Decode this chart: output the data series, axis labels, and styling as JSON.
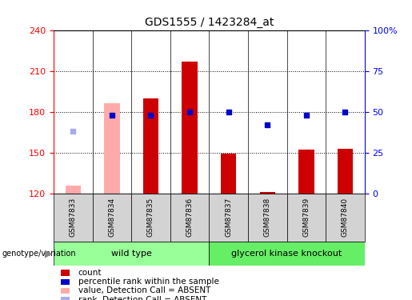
{
  "title": "GDS1555 / 1423284_at",
  "samples": [
    "GSM87833",
    "GSM87834",
    "GSM87835",
    "GSM87836",
    "GSM87837",
    "GSM87838",
    "GSM87839",
    "GSM87840"
  ],
  "ylim_left": [
    120,
    240
  ],
  "ylim_right": [
    0,
    100
  ],
  "yticks_left": [
    120,
    150,
    180,
    210,
    240
  ],
  "yticks_right": [
    0,
    25,
    50,
    75,
    100
  ],
  "yticklabels_right": [
    "0",
    "25",
    "50",
    "75",
    "100%"
  ],
  "bar_bottom": 120,
  "count_values": [
    null,
    null,
    190,
    217,
    149,
    121,
    152,
    153
  ],
  "count_color": "#cc0000",
  "absent_bar_values": [
    126,
    186,
    null,
    null,
    null,
    null,
    null,
    null
  ],
  "absent_bar_color": "#ffaaaa",
  "percentile_values_right": [
    null,
    48,
    48,
    50,
    50,
    42,
    48,
    50
  ],
  "percentile_color": "#0000cc",
  "absent_rank_value_right": [
    38,
    null,
    null,
    null,
    null,
    null,
    null,
    null
  ],
  "absent_rank_color": "#aaaaee",
  "wild_type_indices": [
    0,
    1,
    2,
    3
  ],
  "knockout_indices": [
    4,
    5,
    6,
    7
  ],
  "group_color_wt": "#99ff99",
  "group_color_ko": "#66ee66",
  "group_label_wt": "wild type",
  "group_label_ko": "glycerol kinase knockout",
  "xlabel_label": "genotype/variation",
  "legend_items": [
    {
      "label": "count",
      "color": "#cc0000"
    },
    {
      "label": "percentile rank within the sample",
      "color": "#0000cc"
    },
    {
      "label": "value, Detection Call = ABSENT",
      "color": "#ffaaaa"
    },
    {
      "label": "rank, Detection Call = ABSENT",
      "color": "#aaaaee"
    }
  ],
  "background_color": "#ffffff",
  "bar_width": 0.4,
  "marker_size": 5
}
